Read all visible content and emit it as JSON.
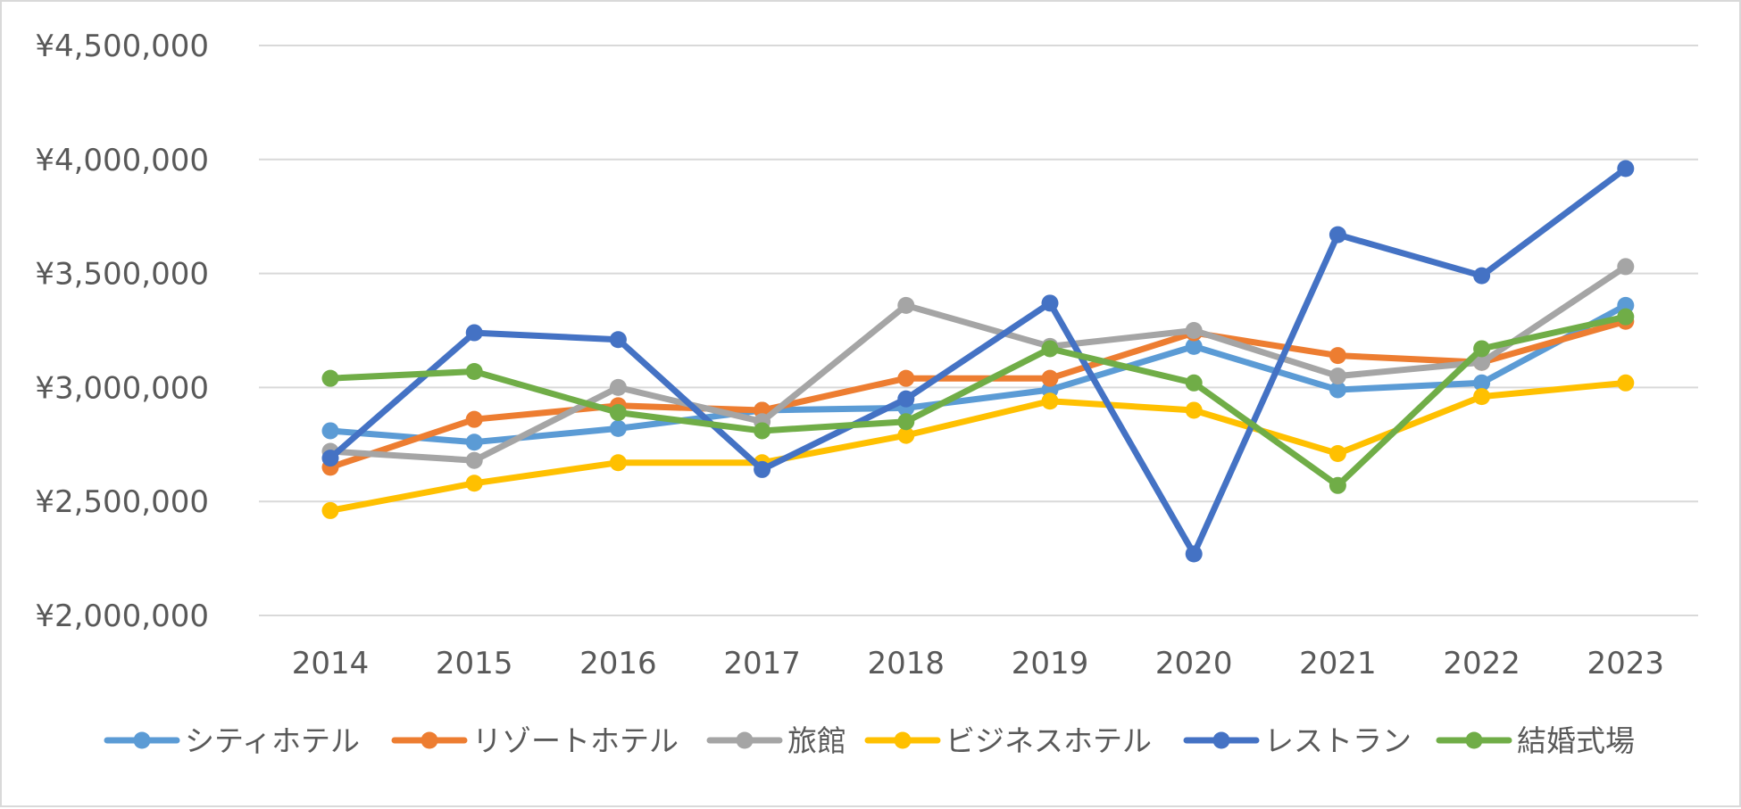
{
  "chart_data": {
    "type": "line",
    "title": "",
    "xlabel": "",
    "ylabel": "",
    "x": [
      "2014",
      "2015",
      "2016",
      "2017",
      "2018",
      "2019",
      "2020",
      "2021",
      "2022",
      "2023"
    ],
    "ylim": [
      2000000,
      4500000
    ],
    "yticks": [
      2000000,
      2500000,
      3000000,
      3500000,
      4000000,
      4500000
    ],
    "ytick_labels": [
      "¥2,000,000",
      "¥2,500,000",
      "¥3,000,000",
      "¥3,500,000",
      "¥4,000,000",
      "¥4,500,000"
    ],
    "grid": true,
    "legend_position": "bottom",
    "series": [
      {
        "name": "シティホテル",
        "color": "#5B9BD5",
        "values": [
          2810000,
          2760000,
          2820000,
          2900000,
          2910000,
          2990000,
          3180000,
          2990000,
          3020000,
          3360000
        ]
      },
      {
        "name": "リゾートホテル",
        "color": "#ED7D31",
        "values": [
          2650000,
          2860000,
          2920000,
          2900000,
          3040000,
          3040000,
          3240000,
          3140000,
          3110000,
          3290000
        ]
      },
      {
        "name": "旅館",
        "color": "#A5A5A5",
        "values": [
          2720000,
          2680000,
          3000000,
          2850000,
          3360000,
          3180000,
          3250000,
          3050000,
          3110000,
          3530000
        ]
      },
      {
        "name": "ビジネスホテル",
        "color": "#FFC000",
        "values": [
          2460000,
          2580000,
          2670000,
          2670000,
          2790000,
          2940000,
          2900000,
          2710000,
          2960000,
          3020000
        ]
      },
      {
        "name": "レストラン",
        "color": "#4472C4",
        "values": [
          2690000,
          3240000,
          3210000,
          2640000,
          2950000,
          3370000,
          2270000,
          3670000,
          3490000,
          3960000
        ]
      },
      {
        "name": "結婚式場",
        "color": "#70AD47",
        "values": [
          3040000,
          3070000,
          2890000,
          2810000,
          2850000,
          3170000,
          3020000,
          2570000,
          3170000,
          3310000
        ]
      }
    ]
  }
}
